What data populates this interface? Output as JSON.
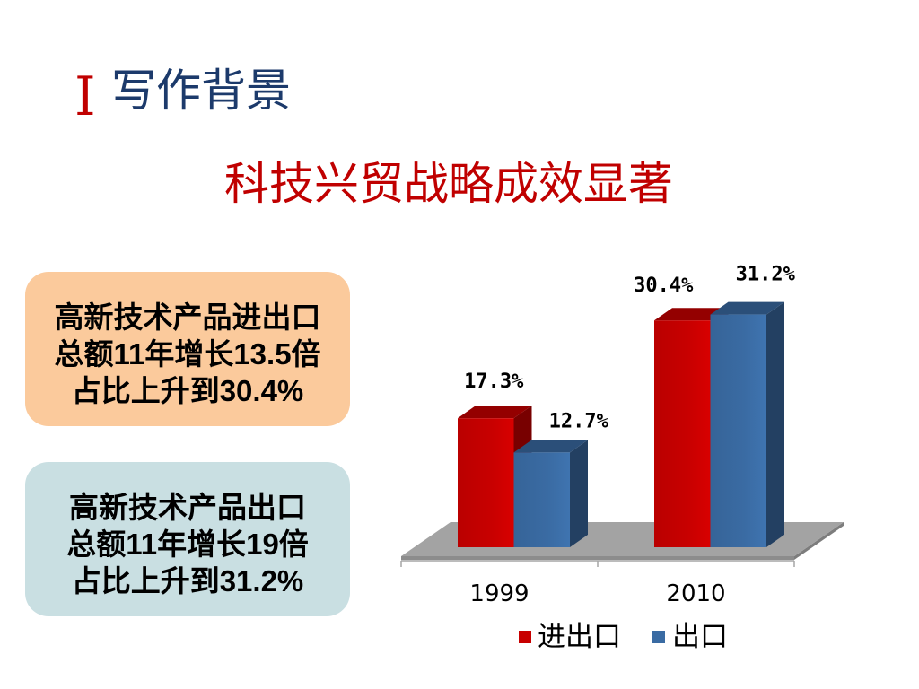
{
  "header": {
    "numeral": "Ⅰ",
    "section_title": "写作背景"
  },
  "slide_title": "科技兴贸战略成效显著",
  "boxes": [
    {
      "lines": [
        "高新技术产品进出口",
        "总额11年增长13.5倍",
        "占比上升到30.4%"
      ],
      "color": "#fbca9c"
    },
    {
      "lines": [
        "高新技术产品出口",
        "总额11年增长19倍",
        "占比上升到31.2%"
      ],
      "color": "#c9dfe2"
    }
  ],
  "colors": {
    "accent_red": "#c00000",
    "section_blue": "#1c3a6b"
  },
  "chart_data": {
    "type": "bar",
    "three_d": true,
    "categories": [
      "1999",
      "2010"
    ],
    "series": [
      {
        "name": "进出口",
        "values": [
          17.3,
          30.4
        ],
        "labels": [
          "17.3%",
          "30.4%"
        ],
        "color": "#c80000"
      },
      {
        "name": "出口",
        "values": [
          12.7,
          31.2
        ],
        "labels": [
          "12.7%",
          "31.2%"
        ],
        "color": "#3a6ba3"
      }
    ],
    "title": "",
    "xlabel": "",
    "ylabel": "",
    "ylim": [
      0,
      35
    ],
    "grid": false,
    "legend": "bottom"
  }
}
